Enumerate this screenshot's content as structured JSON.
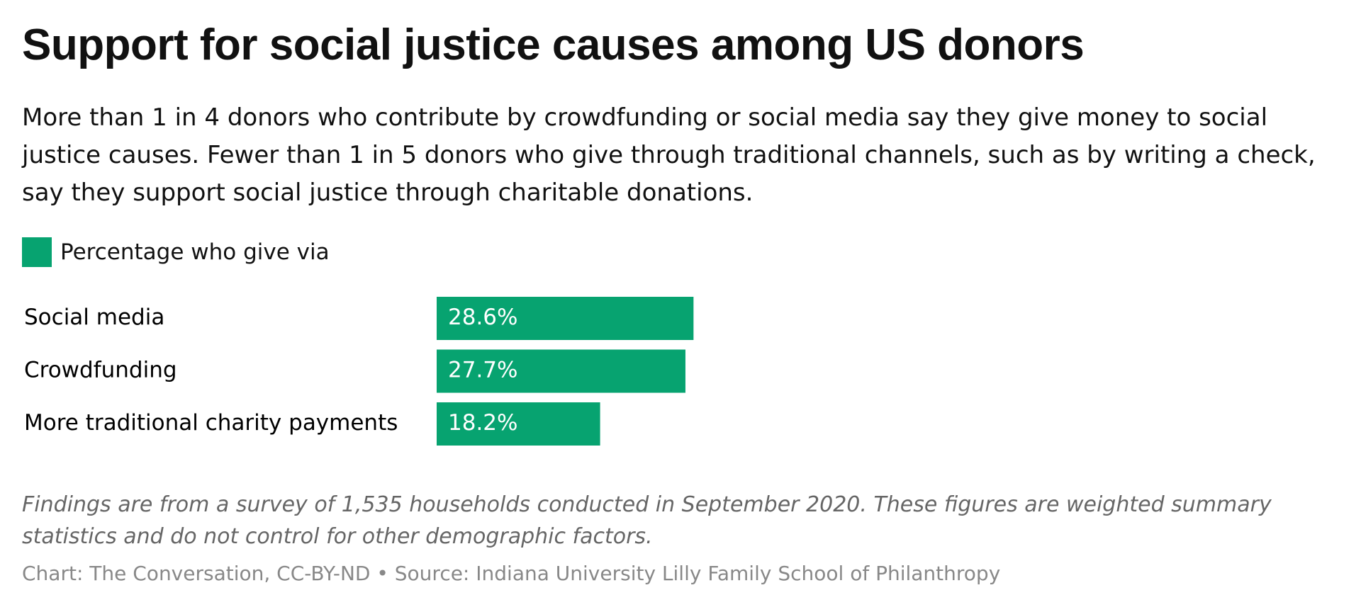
{
  "chart_data": {
    "type": "bar",
    "orientation": "horizontal",
    "title": "Support for social justice causes among US donors",
    "subtitle": "More than 1 in 4 donors who contribute by crowdfunding or social media say they give money to social justice causes. Fewer than 1 in 5 donors who give through traditional channels, such as by writing a check, say they support social justice through charitable donations.",
    "categories": [
      "Social media",
      "Crowdfunding",
      "More traditional charity payments"
    ],
    "series": [
      {
        "name": "Percentage who give via",
        "color": "#07a370",
        "values": [
          28.6,
          27.7,
          18.2
        ],
        "value_labels": [
          "28.6%",
          "27.7%",
          "18.2%"
        ]
      }
    ],
    "note": "Findings are from a survey of 1,535 households conducted in September 2020. These figures are weighted summary statistics and do not control for other demographic factors.",
    "source": "Chart: The Conversation, CC-BY-ND • Source: Indiana University Lilly Family School of Philanthropy"
  }
}
